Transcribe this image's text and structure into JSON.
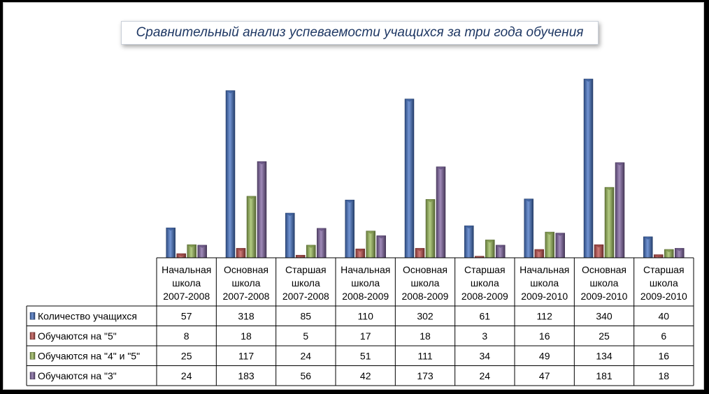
{
  "chart_data": {
    "type": "bar",
    "title": "Сравнительный анализ успеваемости учащихся за три года обучения",
    "categories": [
      [
        "Начальная",
        "школа",
        "2007-2008"
      ],
      [
        "Основная",
        "школа",
        "2007-2008"
      ],
      [
        "Старшая",
        "школа",
        "2007-2008"
      ],
      [
        "Начальная",
        "школа",
        "2008-2009"
      ],
      [
        "Основная",
        "школа",
        "2008-2009"
      ],
      [
        "Старшая",
        "школа",
        "2008-2009"
      ],
      [
        "Начальная",
        "школа",
        "2009-2010"
      ],
      [
        "Основная",
        "школа",
        "2009-2010"
      ],
      [
        "Старшая",
        "школа",
        "2009-2010"
      ]
    ],
    "series": [
      {
        "name": "Количество учащихся",
        "color": "#4472c4",
        "values": [
          57,
          318,
          85,
          110,
          302,
          61,
          112,
          340,
          40
        ]
      },
      {
        "name": "Обучаются на \"5\"",
        "color": "#c0504d",
        "values": [
          8,
          18,
          5,
          17,
          18,
          3,
          16,
          25,
          6
        ]
      },
      {
        "name": "Обучаются на \"4\" и \"5\"",
        "color": "#9bbb59",
        "values": [
          25,
          117,
          24,
          51,
          111,
          34,
          49,
          134,
          16
        ]
      },
      {
        "name": "Обучаются на \"3\"",
        "color": "#8064a2",
        "values": [
          24,
          183,
          56,
          42,
          173,
          24,
          47,
          181,
          18
        ]
      }
    ],
    "ylim": [
      0,
      340
    ],
    "grid": false,
    "legend": "data-table"
  }
}
